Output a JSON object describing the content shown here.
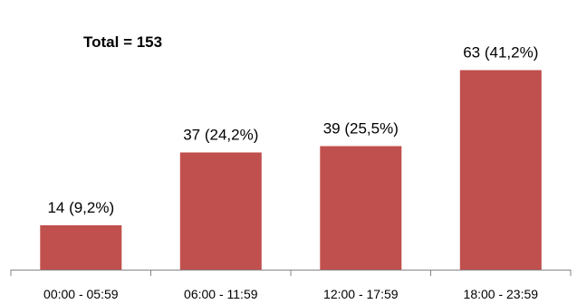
{
  "chart_data": {
    "type": "bar",
    "title": "",
    "annotation": "Total = 153",
    "categories": [
      "00:00 - 05:59",
      "06:00 - 11:59",
      "12:00 - 17:59",
      "18:00 - 23:59"
    ],
    "values": [
      14,
      37,
      39,
      63
    ],
    "data_labels": [
      "14 (9,2%)",
      "37 (24,2%)",
      "39 (25,5%)",
      "63 (41,2%)"
    ],
    "xlabel": "",
    "ylabel": "",
    "ylim": [
      0,
      70
    ],
    "grid": false,
    "legend": "none",
    "bar_color": "#C0504D",
    "axis_color": "#868686"
  }
}
